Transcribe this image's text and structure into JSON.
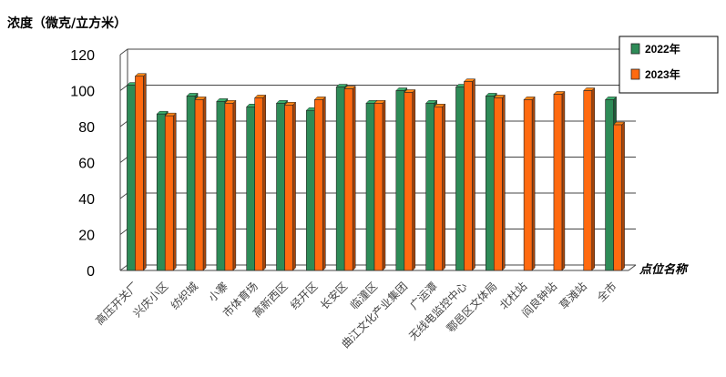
{
  "chart_data": {
    "type": "bar",
    "ylabel": "浓度（微克/立方米）",
    "xlabel": "点位名称",
    "ylim": [
      0,
      120
    ],
    "yticks": [
      0,
      20,
      40,
      60,
      80,
      100,
      120
    ],
    "grid": true,
    "legend_position": "top-right",
    "categories": [
      "高压开关厂",
      "兴庆小区",
      "纺织城",
      "小寨",
      "市体育场",
      "高新西区",
      "经开区",
      "长安区",
      "临潼区",
      "曲江文化产业集团",
      "广运潭",
      "无线电监控中心",
      "鄠邑区文体局",
      "北杜站",
      "阎良钟站",
      "草滩站",
      "全市"
    ],
    "series": [
      {
        "name": "2022年",
        "color": "#2e8b57",
        "values": [
          103,
          87,
          97,
          94,
          91,
          93,
          89,
          102,
          93,
          100,
          93,
          102,
          97,
          null,
          null,
          null,
          95
        ]
      },
      {
        "name": "2023年",
        "color": "#ff6a10",
        "values": [
          108,
          86,
          95,
          93,
          96,
          92,
          95,
          101,
          93,
          99,
          91,
          105,
          96,
          95,
          98,
          100,
          81
        ]
      }
    ]
  }
}
